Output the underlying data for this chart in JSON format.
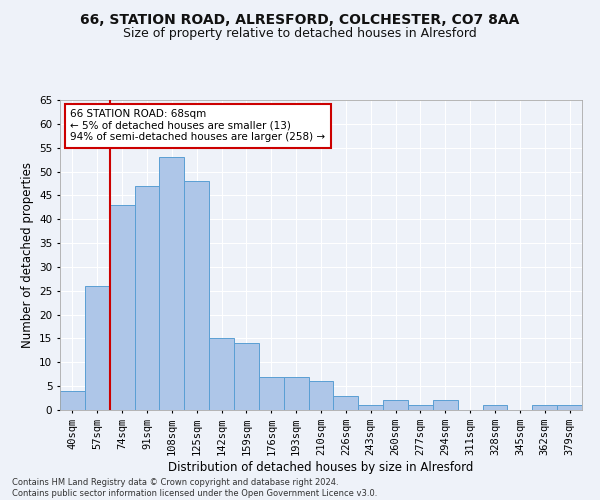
{
  "title_line1": "66, STATION ROAD, ALRESFORD, COLCHESTER, CO7 8AA",
  "title_line2": "Size of property relative to detached houses in Alresford",
  "xlabel": "Distribution of detached houses by size in Alresford",
  "ylabel": "Number of detached properties",
  "footer": "Contains HM Land Registry data © Crown copyright and database right 2024.\nContains public sector information licensed under the Open Government Licence v3.0.",
  "categories": [
    "40sqm",
    "57sqm",
    "74sqm",
    "91sqm",
    "108sqm",
    "125sqm",
    "142sqm",
    "159sqm",
    "176sqm",
    "193sqm",
    "210sqm",
    "226sqm",
    "243sqm",
    "260sqm",
    "277sqm",
    "294sqm",
    "311sqm",
    "328sqm",
    "345sqm",
    "362sqm",
    "379sqm"
  ],
  "values": [
    4,
    26,
    43,
    47,
    53,
    48,
    15,
    14,
    7,
    7,
    6,
    3,
    1,
    2,
    1,
    2,
    0,
    1,
    0,
    1,
    1
  ],
  "bar_color": "#aec6e8",
  "bar_edge_color": "#5a9fd4",
  "annotation_box_text": "66 STATION ROAD: 68sqm\n← 5% of detached houses are smaller (13)\n94% of semi-detached houses are larger (258) →",
  "vline_color": "#cc0000",
  "vline_x": 1.5,
  "ylim": [
    0,
    65
  ],
  "yticks": [
    0,
    5,
    10,
    15,
    20,
    25,
    30,
    35,
    40,
    45,
    50,
    55,
    60,
    65
  ],
  "bg_color": "#eef2f9",
  "grid_color": "#ffffff",
  "title_fontsize": 10,
  "subtitle_fontsize": 9,
  "axis_label_fontsize": 8.5,
  "tick_fontsize": 7.5,
  "footer_fontsize": 6.0
}
